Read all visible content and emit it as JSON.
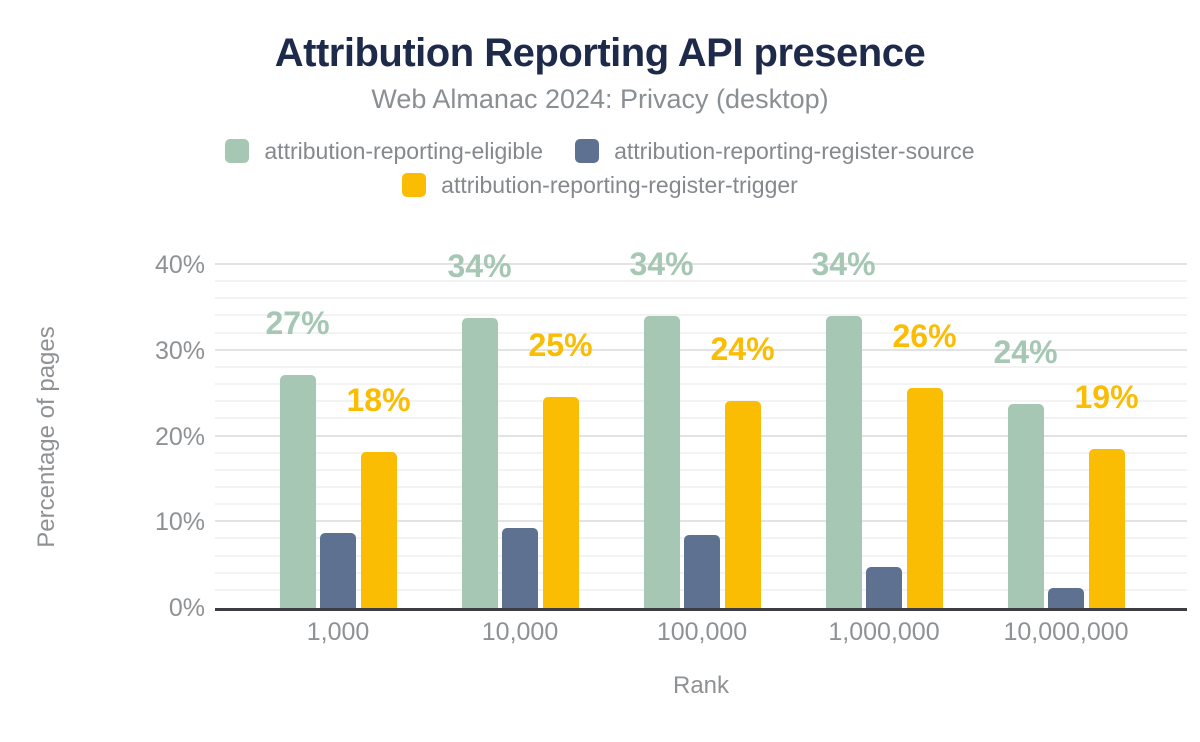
{
  "colors": {
    "title": "#1d2a4a",
    "subtitle": "#8a8f94",
    "axis_text": "#8f9295",
    "legend_text": "#85898d",
    "axis_line": "#3b3d42",
    "grid_major": "#e3e3e3",
    "grid_minor": "#f3f3f3",
    "background": "#ffffff"
  },
  "chart_data": {
    "type": "bar",
    "title": "Attribution Reporting API presence",
    "subtitle": "Web Almanac 2024: Privacy (desktop)",
    "xlabel": "Rank",
    "ylabel": "Percentage of pages",
    "categories": [
      "1,000",
      "10,000",
      "100,000",
      "1,000,000",
      "10,000,000"
    ],
    "series": [
      {
        "name": "attribution-reporting-eligible",
        "color": "#a5c7b4",
        "values": [
          27.2,
          33.8,
          34.1,
          34.0,
          23.8
        ],
        "labels": [
          "27%",
          "34%",
          "34%",
          "34%",
          "24%"
        ]
      },
      {
        "name": "attribution-reporting-register-source",
        "color": "#5e7190",
        "values": [
          8.7,
          9.3,
          8.5,
          4.8,
          2.3
        ],
        "labels": null
      },
      {
        "name": "attribution-reporting-register-trigger",
        "color": "#fbbc04",
        "values": [
          18.2,
          24.6,
          24.2,
          25.6,
          18.6
        ],
        "labels": [
          "18%",
          "25%",
          "24%",
          "26%",
          "19%"
        ]
      }
    ],
    "ylim": [
      0,
      40
    ],
    "yticks": [
      {
        "label": "0%",
        "value": 0
      },
      {
        "label": "10%",
        "value": 10
      },
      {
        "label": "20%",
        "value": 20
      },
      {
        "label": "30%",
        "value": 30
      },
      {
        "label": "40%",
        "value": 40
      }
    ],
    "grid": {
      "orientation": "horizontal",
      "major_every": 10,
      "minor_every": 2
    },
    "legend_position": "top"
  }
}
